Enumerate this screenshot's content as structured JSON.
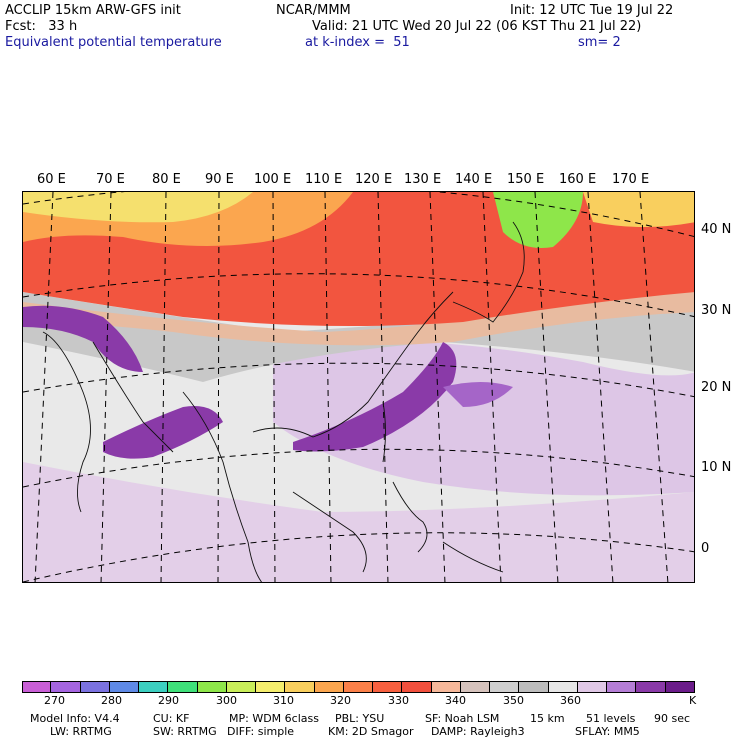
{
  "header": {
    "line1_left": "ACCLIP 15km ARW-GFS init",
    "line1_mid": "NCAR/MMM",
    "line1_right": "Init: 12 UTC Tue 19 Jul 22",
    "line2_left": "Fcst:   33 h",
    "line2_right": "Valid: 21 UTC Wed 20 Jul 22 (06 KST Thu 21 Jul 22)",
    "line3_left": "Equivalent potential temperature",
    "line3_mid": "at k-index =  51",
    "line3_right": "sm= 2"
  },
  "map": {
    "lon_labels": [
      "60 E",
      "70 E",
      "80 E",
      "90 E",
      "100 E",
      "110 E",
      "120 E",
      "130 E",
      "140 E",
      "150 E",
      "160 E",
      "170 E"
    ],
    "lat_labels": [
      "40 N",
      "30 N",
      "20 N",
      "10 N",
      "0"
    ]
  },
  "colorbar": {
    "unit": "K",
    "tick_labels": [
      "270",
      "280",
      "290",
      "300",
      "310",
      "320",
      "330",
      "340",
      "350",
      "360"
    ],
    "colors": [
      "#c95fd6",
      "#a565e0",
      "#7b72e0",
      "#5f8ae6",
      "#3ccfc0",
      "#3fe07a",
      "#8ee64a",
      "#c9ee5a",
      "#f5ee6e",
      "#f9cf5e",
      "#fba64f",
      "#fb8049",
      "#f7603f",
      "#f2503d",
      "#f6b89a",
      "#d6c3bd",
      "#cfcfcf",
      "#bdbdbd",
      "#e6e6e6",
      "#e0c8e6",
      "#b57ed6",
      "#8a3aa8",
      "#6b1c8a"
    ]
  },
  "model_info": {
    "row1": [
      "Model Info: V4.4",
      "CU: KF",
      "MP: WDM 6class",
      "PBL: YSU",
      "SF: Noah LSM",
      "15 km",
      "51 levels",
      "90 sec"
    ],
    "row2": [
      "LW: RRTMG",
      "SW: RRTMG",
      "DIFF: simple",
      "KM: 2D Smagor",
      "DAMP: Rayleigh3",
      "SFLAY: MM5"
    ]
  }
}
